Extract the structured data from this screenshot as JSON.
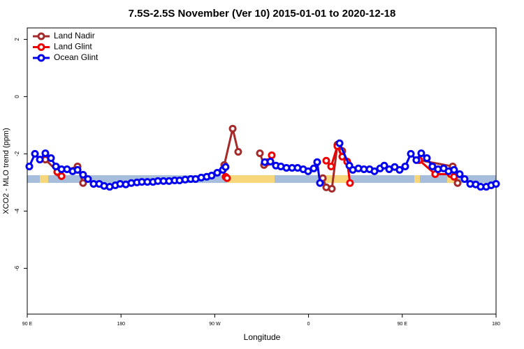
{
  "chart_data": {
    "type": "line",
    "title": "7.5S-2.5S November (Ver 10)   2015-01-01 to 2020-12-18",
    "xlabel": "Longitude",
    "ylabel": "XCO2 - MLO trend (ppm)",
    "xlim": [
      90,
      540
    ],
    "ylim": [
      -7.6,
      2.4
    ],
    "xticks": [
      {
        "value": 90,
        "label": "90 E"
      },
      180,
      {
        "value": 270,
        "label": "90 W"
      },
      {
        "value": 360,
        "label": "0"
      },
      {
        "value": 450,
        "label": "90 E"
      },
      {
        "value": 540,
        "label": "180"
      }
    ],
    "yticks": [
      2,
      0,
      -2,
      -4,
      -6
    ],
    "legend": "top-left",
    "series": [
      {
        "name": "Land Nadir",
        "color": "#a52a2a",
        "x": [
          107.4,
          120.2,
          138.3,
          143.6,
          null,
          279.1,
          287.2,
          292.5,
          null,
          313.3,
          317.3,
          null,
          373.7,
          377.0,
          382.4,
          387.7,
          392.4,
          null,
          466.2,
          498.4,
          503.1
        ],
        "values": [
          -2.2,
          -2.66,
          -2.44,
          -3.02,
          null,
          -2.39,
          -1.12,
          -1.93,
          null,
          -1.98,
          -2.39,
          null,
          -2.85,
          -3.17,
          -3.22,
          -1.68,
          -1.9,
          null,
          -2.22,
          -2.44,
          -3.02
        ]
      },
      {
        "name": "Land Glint",
        "color": "#ee0000",
        "x": [
          118.8,
          122.9,
          null,
          280.4,
          281.8,
          null,
          320.7,
          324.7,
          null,
          377.0,
          381.7,
          387.7,
          392.4,
          397.1,
          399.8,
          null,
          466.2,
          481.6,
          496.4,
          499.7
        ],
        "values": [
          -2.63,
          -2.78,
          null,
          -2.8,
          -2.85,
          null,
          -2.29,
          -2.05,
          null,
          -2.24,
          -2.44,
          -1.73,
          -2.1,
          -2.27,
          -3.02,
          null,
          -2.22,
          -2.71,
          -2.71,
          -2.8
        ]
      },
      {
        "name": "Ocean Glint",
        "color": "#0000ee",
        "x": [
          92.0,
          97.4,
          102.1,
          107.4,
          112.8,
          117.5,
          122.9,
          128.2,
          133.6,
          138.3,
          143.6,
          148.3,
          153.7,
          159.1,
          163.8,
          169.1,
          174.5,
          179.2,
          184.6,
          189.9,
          195.3,
          200.0,
          205.3,
          210.7,
          215.4,
          220.8,
          226.1,
          231.5,
          236.2,
          241.6,
          246.9,
          251.6,
          257.0,
          262.3,
          267.0,
          272.4,
          277.8,
          280.4,
          null,
          318.0,
          323.4,
          328.7,
          333.4,
          338.8,
          344.2,
          349.5,
          354.9,
          359.6,
          365.0,
          368.3,
          371.0,
          null,
          389.8,
          399.2,
          402.5,
          407.9,
          413.2,
          418.6,
          423.3,
          428.7,
          432.7,
          437.4,
          442.7,
          447.4,
          452.8,
          458.2,
          463.5,
          468.2,
          473.6,
          478.9,
          484.3,
          489.7,
          494.4,
          499.7,
          505.1,
          509.8,
          515.2,
          520.5,
          525.2,
          530.6,
          535.3,
          540.0
        ],
        "values": [
          -2.44,
          -2.0,
          -2.2,
          -1.98,
          -2.15,
          -2.44,
          -2.54,
          -2.54,
          -2.61,
          -2.56,
          -2.73,
          -2.88,
          -3.05,
          -3.05,
          -3.12,
          -3.15,
          -3.1,
          -3.05,
          -3.07,
          -3.02,
          -3.0,
          -2.98,
          -2.98,
          -2.98,
          -2.95,
          -2.95,
          -2.95,
          -2.93,
          -2.93,
          -2.9,
          -2.88,
          -2.88,
          -2.83,
          -2.8,
          -2.76,
          -2.66,
          -2.56,
          -2.46,
          null,
          -2.29,
          -2.27,
          -2.41,
          -2.44,
          -2.49,
          -2.49,
          -2.49,
          -2.54,
          -2.61,
          -2.51,
          -2.29,
          -3.02,
          null,
          -1.63,
          -2.41,
          -2.56,
          -2.51,
          -2.54,
          -2.54,
          -2.61,
          -2.51,
          -2.41,
          -2.54,
          -2.46,
          -2.56,
          -2.44,
          -2.0,
          -2.22,
          -1.98,
          -2.15,
          -2.44,
          -2.54,
          -2.51,
          -2.61,
          -2.56,
          -2.71,
          -2.88,
          -3.05,
          -3.07,
          -3.15,
          -3.15,
          -3.1,
          -3.05
        ]
      }
    ]
  }
}
